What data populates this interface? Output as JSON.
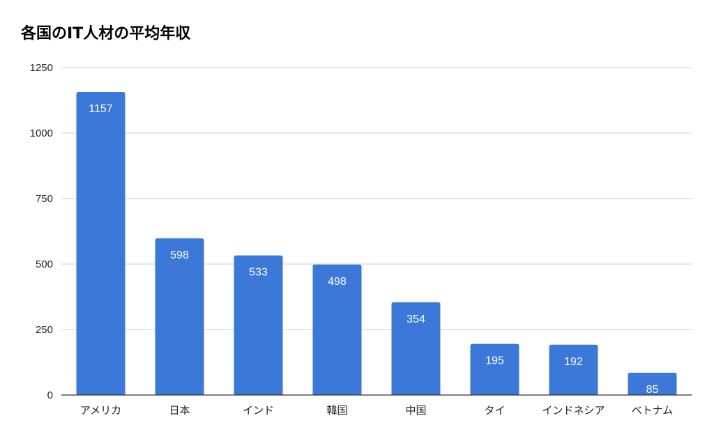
{
  "chart_data": {
    "type": "bar",
    "title": "各国のIT人材の平均年収",
    "xlabel": "",
    "ylabel": "",
    "categories": [
      "アメリカ",
      "日本",
      "インド",
      "韓国",
      "中国",
      "タイ",
      "インドネシア",
      "ベトナム"
    ],
    "values": [
      1157,
      598,
      533,
      498,
      354,
      195,
      192,
      85
    ],
    "ylim": [
      0,
      1250
    ],
    "yticks": [
      0,
      250,
      500,
      750,
      1000,
      1250
    ],
    "grid": true,
    "legend": "none",
    "colors": {
      "bar": "#3c78d8",
      "grid": "#cccccc",
      "axis": "#333333"
    }
  }
}
